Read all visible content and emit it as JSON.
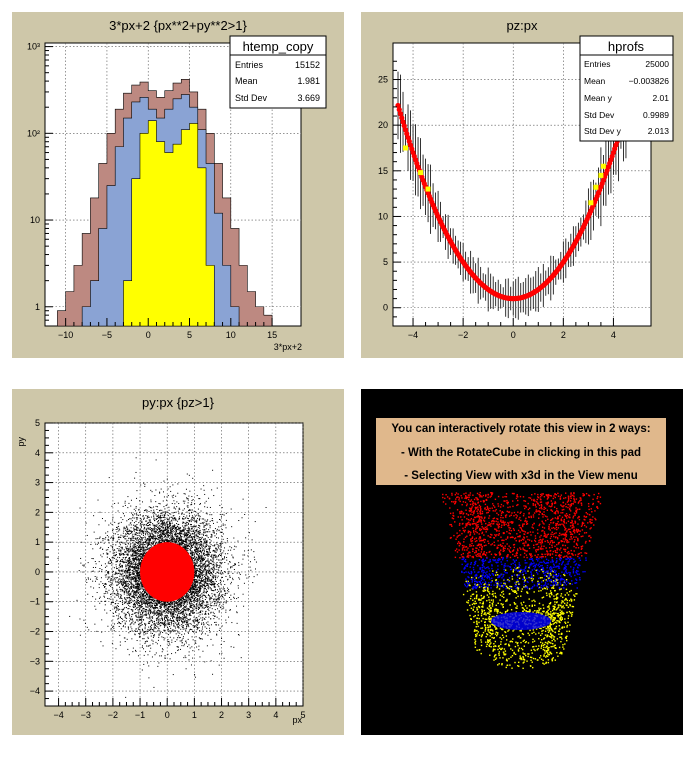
{
  "colors": {
    "pad_bg": "#cec7a9",
    "frame_bg": "#ffffff",
    "hist_outer": "#bd8981",
    "hist_mid": "#8aa3d4",
    "hist_inner": "#ffff00",
    "profile_red": "#ff0000",
    "profile_yellow": "#ffff00",
    "scatter_black": "#000000",
    "scatter_red": "#ff0000",
    "note_bg": "#e0b88c",
    "dark_bg": "#000000",
    "point_blue": "#0000ff"
  },
  "chart_data": [
    {
      "id": "pad1",
      "type": "bar",
      "title": "3*px+2 {px**2+py**2>1}",
      "xlabel": "3*px+2",
      "ylabel": "",
      "xlim": [
        -12.5,
        18.5
      ],
      "ylim_log": [
        0.6,
        1100
      ],
      "y_scale": "log",
      "x_ticks": [
        -10,
        -5,
        0,
        5,
        10,
        15
      ],
      "y_ticks": [
        {
          "value": 1,
          "label": "1"
        },
        {
          "value": 10,
          "label": "10"
        },
        {
          "value": 100,
          "label": "10²"
        },
        {
          "value": 1000,
          "label": "10³"
        }
      ],
      "grid": true,
      "legend": {
        "title": "htemp_copy",
        "rows": [
          {
            "label": "Entries",
            "value": "15152"
          },
          {
            "label": "Mean",
            "value": "1.981"
          },
          {
            "label": "Std Dev",
            "value": "3.669"
          }
        ]
      },
      "series": [
        {
          "name": "outer",
          "color_key": "hist_outer",
          "x": [
            -10.5,
            -9.5,
            -8.5,
            -7.5,
            -6.5,
            -5.5,
            -4.5,
            -3.5,
            -2.5,
            -1.5,
            -0.5,
            0.5,
            1.5,
            2.5,
            3.5,
            4.5,
            5.5,
            6.5,
            7.5,
            8.5,
            9.5,
            10.5,
            11.5,
            12.5,
            13.5,
            14.5
          ],
          "values": [
            0.9,
            1.5,
            3,
            7,
            18,
            45,
            100,
            190,
            290,
            360,
            390,
            310,
            260,
            310,
            380,
            420,
            300,
            190,
            100,
            45,
            18,
            8,
            3,
            1.5,
            1,
            0.8
          ]
        },
        {
          "name": "mid",
          "color_key": "hist_mid",
          "x": [
            -7.5,
            -6.5,
            -5.5,
            -4.5,
            -3.5,
            -2.5,
            -1.5,
            -0.5,
            0.5,
            1.5,
            2.5,
            3.5,
            4.5,
            5.5,
            6.5,
            7.5,
            8.5,
            9.5,
            10.5
          ],
          "values": [
            1,
            2,
            8,
            25,
            70,
            150,
            230,
            260,
            190,
            150,
            190,
            250,
            280,
            200,
            110,
            45,
            12,
            3,
            1
          ]
        },
        {
          "name": "inner",
          "color_key": "hist_inner",
          "x": [
            -2.5,
            -1.5,
            -0.5,
            0.5,
            1.5,
            2.5,
            3.5,
            4.5,
            5.5,
            6.5,
            7.5
          ],
          "values": [
            2,
            30,
            100,
            140,
            80,
            60,
            75,
            110,
            130,
            40,
            3
          ]
        }
      ]
    },
    {
      "id": "pad2",
      "type": "scatter",
      "title": "pz:px",
      "xlabel": "",
      "ylabel": "",
      "xlim": [
        -4.8,
        5.5
      ],
      "ylim": [
        -2,
        29
      ],
      "x_ticks": [
        -4,
        -2,
        0,
        2,
        4
      ],
      "y_ticks": [
        0,
        5,
        10,
        15,
        20,
        25
      ],
      "grid": true,
      "legend": {
        "title": "hprofs",
        "rows": [
          {
            "label": "Entries",
            "value": "25000"
          },
          {
            "label": "Mean",
            "value": "−0.003826"
          },
          {
            "label": "Mean y",
            "value": "2.01"
          },
          {
            "label": "Std Dev",
            "value": "0.9989"
          },
          {
            "label": "Std Dev y",
            "value": "2.013"
          }
        ]
      },
      "profile": {
        "x_min": -4.6,
        "x_max": 4.6,
        "step": 0.1,
        "offset": 1.0,
        "error": 1.8
      },
      "yellow_points": [
        {
          "x": -4.3,
          "y": 17.5
        },
        {
          "x": -3.7,
          "y": 14.8
        },
        {
          "x": -3.4,
          "y": 13.0
        },
        {
          "x": 3.1,
          "y": 11.5
        },
        {
          "x": 3.3,
          "y": 13.2
        },
        {
          "x": 3.5,
          "y": 14.5
        },
        {
          "x": 3.6,
          "y": 15.5
        }
      ]
    },
    {
      "id": "pad3",
      "type": "scatter",
      "title": "py:px {pz>1}",
      "xlabel": "px",
      "ylabel": "py",
      "xlim": [
        -4.5,
        5
      ],
      "ylim": [
        -4.5,
        5
      ],
      "x_ticks": [
        -4,
        -3,
        -2,
        -1,
        0,
        1,
        2,
        3,
        4,
        5
      ],
      "y_ticks": [
        -4,
        -3,
        -2,
        -1,
        0,
        1,
        2,
        3,
        4,
        5
      ],
      "grid": true,
      "point_count": 9000,
      "inner_radius": 1.0
    },
    {
      "id": "pad4",
      "type": "scatter",
      "title": "",
      "note_lines": [
        "You can interactively rotate this view in 2 ways:",
        "- With the RotateCube in clicking in this pad",
        "- Selecting View with x3d in the View menu"
      ],
      "point_count": 3000
    }
  ]
}
